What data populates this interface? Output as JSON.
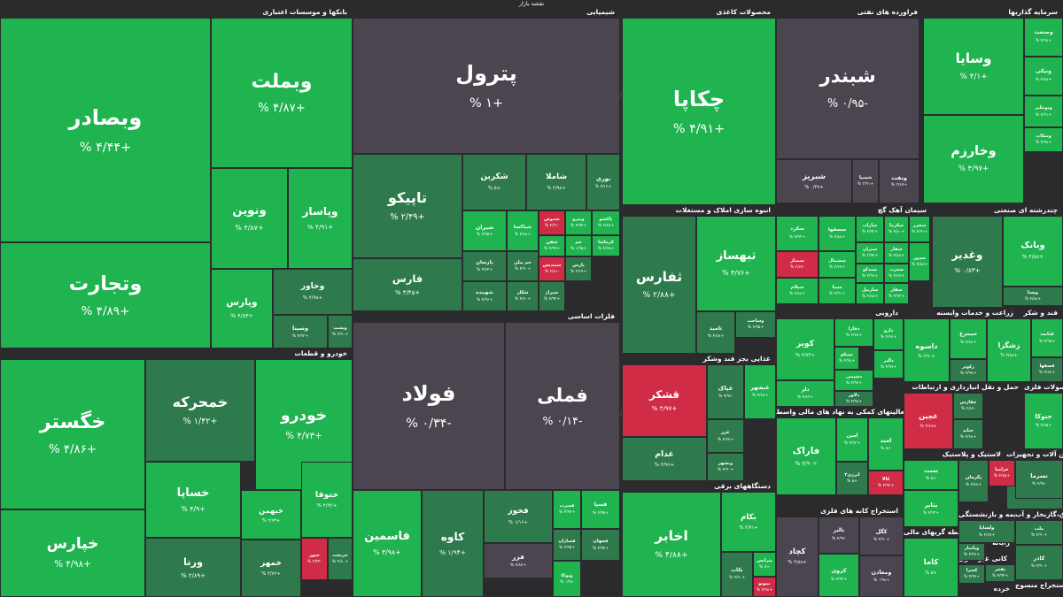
{
  "colors": {
    "bg": "#2b2b2e",
    "green": "#1fb450",
    "green_dark": "#2e7a4c",
    "gray": "#4a454e",
    "red": "#d02c46"
  },
  "header": {
    "title": "نقشه بازار"
  },
  "chart_data": {
    "type": "heatmap",
    "sectors": [
      "بانکها و موسسات اعتباری",
      "شیمیایی",
      "محصولات کاغذی",
      "فراورده های نفتی",
      "سرمایه گذاریها",
      "انبوه سازی املاک و مستغلات",
      "سیمان آهک گچ",
      "چندرشته ای صنعتی",
      "خودرو و قطعات",
      "فلزات اساسی",
      "دارویی",
      "زراعت و خدمات وابسته",
      "قند و شکر",
      "غذایی بجز قند وشکر",
      "حمل و نقل انبارداری و ارتباطات",
      "محصولات فلزی",
      "فعالیتهای کمکی به نهاد های مالی واسط",
      "لاستیک و پلاستیک",
      "ماشین آلات و تجهیزات",
      "دستگاههای برقی",
      "استخراج کانه های فلزی",
      "واسطه گریهای مالی",
      "بیمه و بازنشستگی",
      "عرضه برق،گازبخار و آب",
      "کانی غیر فلزی",
      "استخراج منسوج",
      "خرده",
      "کاشی و",
      "رایانه"
    ],
    "tiles": [
      {
        "name": "وبصادر",
        "change": "+۴/۴۴ %"
      },
      {
        "name": "وبملت",
        "change": "+۴/۸۷ %"
      },
      {
        "name": "وتجارت",
        "change": "+۴/۸۹ %"
      },
      {
        "name": "ونوین",
        "change": "+۴/۸۷ %"
      },
      {
        "name": "وپاسار",
        "change": "+۴/۹۱ %"
      },
      {
        "name": "وپارس",
        "change": "+۴/۸۳ %"
      },
      {
        "name": "وخاور",
        "change": "+۴/۹۸ %"
      },
      {
        "name": "وسینا",
        "change": "+۴/۹۳ %"
      },
      {
        "name": "وپست",
        "change": "+۴/۹۰ %"
      },
      {
        "name": "پترول",
        "change": "+۱ %"
      },
      {
        "name": "تاپیکو",
        "change": "+۲/۴۹ %"
      },
      {
        "name": "شکربن",
        "change": "+۵ %"
      },
      {
        "name": "شاملا",
        "change": "+۴/۹۸ %"
      },
      {
        "name": "نوری",
        "change": "+۴/۱۲ %"
      },
      {
        "name": "فارس",
        "change": "+۳/۴۵ %"
      },
      {
        "name": "شیران",
        "change": "+۴/۹۵ %"
      },
      {
        "name": "شپاکسا",
        "change": "+۴/۸۸ %"
      },
      {
        "name": "شدوص",
        "change": "-۴/۳۱ %"
      },
      {
        "name": "وپترو",
        "change": "+۲/۹۷ %"
      },
      {
        "name": "پاکشو",
        "change": "+۳/۸۷ %"
      },
      {
        "name": "شفن",
        "change": "+۴/۹۹ %"
      },
      {
        "name": "جم",
        "change": "+۱/۹۵ %"
      },
      {
        "name": "کرماشا",
        "change": "+۴/۶۵ %"
      },
      {
        "name": "پارسان",
        "change": "+۴/۷۴ %"
      },
      {
        "name": "جم پیلن",
        "change": "+۴/۹۰ %"
      },
      {
        "name": "شبندیس",
        "change": "-۲/۸۱ %"
      },
      {
        "name": "پارس",
        "change": "+۳/۶۹ %"
      },
      {
        "name": "شوینده",
        "change": "+۴/۹۶ %"
      },
      {
        "name": "شکلر",
        "change": "+۴/۷۰ %"
      },
      {
        "name": "شیراز",
        "change": "+۴/۹۴ %"
      },
      {
        "name": "چکاپا",
        "change": "+۴/۹۱ %"
      },
      {
        "name": "شبندر",
        "change": "-۰/۹۵ %"
      },
      {
        "name": "شبریز",
        "change": "+۰/۴۷ %"
      },
      {
        "name": "شسپا",
        "change": "+۳/۹۱ %"
      },
      {
        "name": "ونفت",
        "change": "+۳/۸۹ %"
      },
      {
        "name": "وسایا",
        "change": "+۴/۱ %"
      },
      {
        "name": "وخارزم",
        "change": "+۴/۹۷ %"
      },
      {
        "name": "وصنعت",
        "change": "+۴/۹۸ %"
      },
      {
        "name": "ونیکی",
        "change": "+۴/۸۸ %"
      },
      {
        "name": "وبوعلی",
        "change": "+۴/۹۱ %"
      },
      {
        "name": "وسکاب",
        "change": "+۴/۹۸ %"
      },
      {
        "name": "ثفارس",
        "change": "+۲/۸۸ %"
      },
      {
        "name": "ثبهساز",
        "change": "+۴/۷۶ %"
      },
      {
        "name": "ثامید",
        "change": "+۴/۸۷ %"
      },
      {
        "name": "وساخت",
        "change": "+۴/۹۵ %"
      },
      {
        "name": "سکرد",
        "change": "+۴/۹۳ %"
      },
      {
        "name": "سصفها",
        "change": "+۴/۸۸ %"
      },
      {
        "name": "ساراب",
        "change": "+۴/۹۳ %"
      },
      {
        "name": "سکرما",
        "change": "+۴/۸۰ %"
      },
      {
        "name": "سخزر",
        "change": "+۴/۹۱ %"
      },
      {
        "name": "ستران",
        "change": "+۳/۹۴ %"
      },
      {
        "name": "سفار",
        "change": "+۴/۸۸ %"
      },
      {
        "name": "سمتاز",
        "change": "-۲/۶۷ %"
      },
      {
        "name": "سشمال",
        "change": "+۳/۶۷ %"
      },
      {
        "name": "سیدکو",
        "change": "+۴/۹۷ %"
      },
      {
        "name": "سغرب",
        "change": "+۴/۸۹ %"
      },
      {
        "name": "سدور",
        "change": "+۴/۸۸ %"
      },
      {
        "name": "سیلام",
        "change": "+۴/۸۸ %"
      },
      {
        "name": "سینا",
        "change": "+۴/۹۱ %"
      },
      {
        "name": "ساربیل",
        "change": "+۴/۸۸ %"
      },
      {
        "name": "سفار",
        "change": "+۴/۹۳ %"
      },
      {
        "name": "وغدیر",
        "change": "+۰/۸۳ %"
      },
      {
        "name": "وبانک",
        "change": "+۴/۸۸ %"
      },
      {
        "name": "وصنا",
        "change": "+۴/۸۸ %"
      },
      {
        "name": "خگستر",
        "change": "+۴/۸۶ %"
      },
      {
        "name": "خمحرکه",
        "change": "+۱/۴۲ %"
      },
      {
        "name": "خودرو",
        "change": "+۴/۷۳ %"
      },
      {
        "name": "خساپا",
        "change": "+۴/۹ %"
      },
      {
        "name": "خبهمن",
        "change": "+۴/۹۳ %"
      },
      {
        "name": "ختوقا",
        "change": "+۴/۹۳ %"
      },
      {
        "name": "خپارس",
        "change": "+۴/۹۸ %"
      },
      {
        "name": "ورنا",
        "change": "+۳/۸۹ %"
      },
      {
        "name": "خمهر",
        "change": "+۴/۷۲ %"
      },
      {
        "name": "ختور",
        "change": "-۳/۴۳ %"
      },
      {
        "name": "خریخت",
        "change": "+۴/۸۰ %"
      },
      {
        "name": "فولاد",
        "change": "-۰/۳۴ %"
      },
      {
        "name": "فملی",
        "change": "-۰/۱۴ %"
      },
      {
        "name": "فاسمین",
        "change": "+۴/۹۸ %"
      },
      {
        "name": "کاوه",
        "change": "+۱/۹۴ %"
      },
      {
        "name": "فخوز",
        "change": "+۱/۱۶ %"
      },
      {
        "name": "فسرب",
        "change": "+۴/۹۴ %"
      },
      {
        "name": "فسپا",
        "change": "+۴/۹۵ %"
      },
      {
        "name": "فزر",
        "change": "+۴/۸۷ %"
      },
      {
        "name": "فسازان",
        "change": "+۴/۹۵ %"
      },
      {
        "name": "فجهان",
        "change": "+۴/۹۴ %"
      },
      {
        "name": "وتوکا",
        "change": "-۰/۳۸ %"
      },
      {
        "name": "کویر",
        "change": "+۴/۷۳ %"
      },
      {
        "name": "تیپیکو",
        "change": "+۴/۹۸ %"
      },
      {
        "name": "دفارا",
        "change": "+۴/۷۸ %"
      },
      {
        "name": "دارو",
        "change": "+۴/۶۷ %"
      },
      {
        "name": "دالبر",
        "change": "+۴/۹۷ %"
      },
      {
        "name": "دلر",
        "change": "+۴/۸۹ %"
      },
      {
        "name": "دشیمی",
        "change": "+۴/۹۷ %"
      },
      {
        "name": "دلاور",
        "change": "+۴/۹۸ %"
      },
      {
        "name": "داسوه",
        "change": "+۴/۹۰ %"
      },
      {
        "name": "سیمرغ",
        "change": "+۴/۸۸ %"
      },
      {
        "name": "زکوثر",
        "change": "+۴/۹۷ %"
      },
      {
        "name": "زشگزا",
        "change": "+۴/۸۸ %"
      },
      {
        "name": "قثابت",
        "change": "+۴/۹۵ %"
      },
      {
        "name": "قصفها",
        "change": "+۴/۸۸ %"
      },
      {
        "name": "قشکر",
        "change": "+۴/۹۷ %"
      },
      {
        "name": "غپاک",
        "change": "-۹/۹۷ %"
      },
      {
        "name": "غبشهر",
        "change": "+۴/۸۷ %"
      },
      {
        "name": "غدام",
        "change": "+۴/۹۶ %"
      },
      {
        "name": "غزر",
        "change": "+۴/۷۷ %"
      },
      {
        "name": "وبشهر",
        "change": "+۴/۹۰ %"
      },
      {
        "name": "غچین",
        "change": "+۴/۶۸ %"
      },
      {
        "name": "حفارس",
        "change": "-۲/۸۶ %"
      },
      {
        "name": "حتاید",
        "change": "+۴/۶۸ %"
      },
      {
        "name": "حتوکا",
        "change": "+۴/۸۵ %"
      },
      {
        "name": "فاراک",
        "change": "+۴/۹۰ %"
      },
      {
        "name": "امین",
        "change": "+۴/۹۳ %"
      },
      {
        "name": "امید",
        "change": "+۵ %"
      },
      {
        "name": "کالا",
        "change": "+۴/۹۲ %"
      },
      {
        "name": "اترژی۳",
        "change": "+۵ %"
      },
      {
        "name": "ثعمت",
        "change": "+۵ %"
      },
      {
        "name": "پتایر",
        "change": "+۴/۹۳ %"
      },
      {
        "name": "پکرمان",
        "change": "+۴/۸۸ %"
      },
      {
        "name": "تکشا",
        "change": "+۴/۸۳ %"
      },
      {
        "name": "خزامیا",
        "change": "+۴/۸۵ %"
      },
      {
        "name": "تسرما",
        "change": "-۲/۹۸ %"
      },
      {
        "name": "اخابر",
        "change": "+۴/۸۸ %"
      },
      {
        "name": "بکام",
        "change": "+۴/۹۱ %"
      },
      {
        "name": "بترانس",
        "change": "+۵ %"
      },
      {
        "name": "بکاب",
        "change": "+۴/۹۰ %"
      },
      {
        "name": "بموتو",
        "change": "+۴/۹۸ %"
      },
      {
        "name": "بالبر",
        "change": "-۴/۹۷ %"
      },
      {
        "name": "کگل",
        "change": "+۴/۹۰ %"
      },
      {
        "name": "کچاد",
        "change": "+۴/۸۸ %"
      },
      {
        "name": "ومعادن",
        "change": "+۰/۹۸ %"
      },
      {
        "name": "کروی",
        "change": "+۴/۹۳ %"
      },
      {
        "name": "کاما",
        "change": "+۵ %"
      },
      {
        "name": "ولساپا",
        "change": "+۴/۸۹ %"
      },
      {
        "name": "وپاسار",
        "change": "+۴/۹۶ %"
      },
      {
        "name": "ملت",
        "change": "+۴/۹۰ %"
      },
      {
        "name": "بفجر",
        "change": "+۴/۹۴ %"
      },
      {
        "name": "کسرا",
        "change": "+۴/۹۷ %"
      },
      {
        "name": "کاذر",
        "change": "+۴/۹۰ %"
      },
      {
        "name": "کرازی",
        "change": "+۴/۹۰ %"
      }
    ]
  }
}
